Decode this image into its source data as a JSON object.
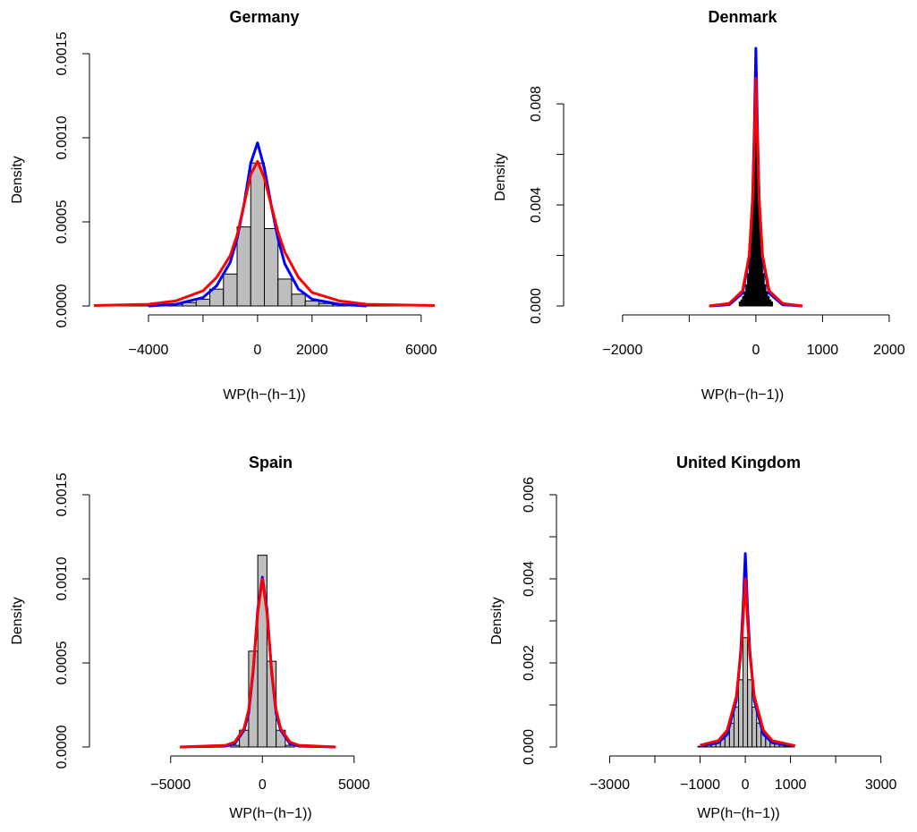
{
  "chart_data": [
    {
      "type": "histogram",
      "title": "Germany",
      "xlabel": "WP(h−(h−1))",
      "ylabel": "Density",
      "color": "#bebebe",
      "xlim": [
        -6000,
        6500
      ],
      "ylim": [
        0,
        0.0015
      ],
      "xticks": [
        {
          "value": -4000,
          "label": "−4000"
        },
        {
          "value": -2000,
          "label": null
        },
        0,
        2000,
        {
          "value": 4000,
          "label": null
        },
        6000
      ],
      "yticks": [
        {
          "value": 0,
          "label": "0.0000"
        },
        {
          "value": 0.0005,
          "label": "0.0005"
        },
        {
          "value": 0.001,
          "label": "0.0010"
        },
        {
          "value": 0.0015,
          "label": "0.0015"
        }
      ],
      "bins": [
        -5750,
        -5250,
        -4750,
        -4250,
        -3750,
        -3250,
        -2750,
        -2250,
        -1750,
        -1250,
        -750,
        -250,
        250,
        750,
        1250,
        1750,
        2250,
        2750,
        3250,
        3750,
        4250,
        4750,
        5250,
        5750,
        6250
      ],
      "values": [
        1e-06,
        1e-06,
        2e-06,
        3e-06,
        6e-06,
        1e-05,
        2e-05,
        4e-05,
        0.0001,
        0.00019,
        0.00047,
        0.00085,
        0.00046,
        0.00016,
        7e-05,
        3e-05,
        1.5e-05,
        8e-06,
        4e-06,
        3e-06,
        2e-06,
        1e-06,
        1e-06,
        1e-06
      ],
      "series": [
        {
          "color": "#0000ff",
          "x": [
            -4000,
            -3000,
            -2000,
            -1500,
            -1000,
            -750,
            -500,
            -250,
            0,
            250,
            500,
            750,
            1000,
            1500,
            2000,
            3000,
            4000
          ],
          "values": [
            0,
            1e-05,
            5e-05,
            0.00012,
            0.00026,
            0.0004,
            0.0006,
            0.00085,
            0.00097,
            0.00082,
            0.0006,
            0.0004,
            0.00025,
            0.0001,
            4e-05,
            1e-05,
            0
          ]
        },
        {
          "color": "#ff0000",
          "x": [
            -6000,
            -4000,
            -3000,
            -2000,
            -1500,
            -1000,
            -750,
            -500,
            -250,
            0,
            250,
            500,
            750,
            1000,
            1500,
            2000,
            3000,
            4000,
            6500
          ],
          "values": [
            3e-06,
            1e-05,
            3e-05,
            9e-05,
            0.00017,
            0.0003,
            0.00042,
            0.0006,
            0.00078,
            0.00086,
            0.00076,
            0.0006,
            0.00044,
            0.00032,
            0.00017,
            8e-05,
            3e-05,
            1e-05,
            3e-06
          ]
        }
      ]
    },
    {
      "type": "histogram",
      "title": "Denmark",
      "xlabel": "WP(h−(h−1))",
      "ylabel": "Density",
      "color": "#000000",
      "xlim": [
        -2750,
        2350
      ],
      "ylim": [
        0,
        0.0102
      ],
      "xticks": [
        {
          "value": -2000,
          "label": "−2000"
        },
        {
          "value": -1000,
          "label": null
        },
        0,
        1000,
        2000
      ],
      "yticks": [
        {
          "value": 0,
          "label": "0.000"
        },
        {
          "value": 0.002,
          "label": null
        },
        {
          "value": 0.004,
          "label": "0.004"
        },
        {
          "value": 0.006,
          "label": null
        },
        {
          "value": 0.008,
          "label": "0.008"
        }
      ],
      "bins": [
        -250,
        -225,
        -200,
        -175,
        -150,
        -125,
        -100,
        -75,
        -50,
        -25,
        0,
        25,
        50,
        75,
        100,
        125,
        150,
        175,
        200,
        225,
        250
      ],
      "values": [
        0.00016,
        0.00024,
        0.00037,
        0.00056,
        0.00084,
        0.00128,
        0.00194,
        0.00294,
        0.00446,
        0.00677,
        0.00677,
        0.00446,
        0.00294,
        0.00194,
        0.00128,
        0.00084,
        0.00056,
        0.00037,
        0.00024,
        0.00016
      ],
      "series": [
        {
          "color": "#0000ff",
          "x": [
            -700,
            -400,
            -200,
            -100,
            -50,
            -25,
            0,
            25,
            50,
            100,
            200,
            400,
            700
          ],
          "values": [
            0,
            5e-05,
            0.0005,
            0.0019,
            0.0042,
            0.0068,
            0.0102,
            0.0068,
            0.0042,
            0.0019,
            0.0005,
            5e-05,
            0
          ]
        },
        {
          "color": "#ff0000",
          "x": [
            -700,
            -400,
            -200,
            -100,
            -50,
            -25,
            0,
            25,
            50,
            100,
            200,
            400,
            700
          ],
          "values": [
            0,
            0.0001,
            0.0006,
            0.002,
            0.0042,
            0.0063,
            0.009,
            0.0063,
            0.0042,
            0.002,
            0.0006,
            0.0001,
            0
          ]
        }
      ]
    },
    {
      "type": "histogram",
      "title": "Spain",
      "xlabel": "WP(h−(h−1))",
      "ylabel": "Density",
      "color": "#bebebe",
      "xlim": [
        -8500,
        9400
      ],
      "ylim": [
        0,
        0.0015
      ],
      "xticks": [
        {
          "value": -5000,
          "label": "−5000"
        },
        0,
        5000
      ],
      "yticks": [
        {
          "value": 0,
          "label": "0.0000"
        },
        {
          "value": 0.0005,
          "label": "0.0005"
        },
        {
          "value": 0.001,
          "label": "0.0010"
        },
        {
          "value": 0.0015,
          "label": "0.0015"
        }
      ],
      "bins": [
        -1750,
        -1250,
        -750,
        -250,
        250,
        750,
        1250,
        1750
      ],
      "values": [
        1e-05,
        0.0001,
        0.00057,
        0.00114,
        0.00051,
        0.0001,
        1e-05
      ],
      "series": [
        {
          "color": "#0000ff",
          "x": [
            -4500,
            -2000,
            -1500,
            -1000,
            -750,
            -500,
            -250,
            0,
            250,
            500,
            750,
            1000,
            1500,
            2000,
            4000
          ],
          "values": [
            0,
            5e-06,
            2e-05,
            0.0001,
            0.0002,
            0.00045,
            0.00082,
            0.00101,
            0.00082,
            0.00045,
            0.0002,
            0.0001,
            2e-05,
            5e-06,
            0
          ]
        },
        {
          "color": "#ff0000",
          "x": [
            -4500,
            -2000,
            -1500,
            -1000,
            -750,
            -500,
            -250,
            0,
            250,
            500,
            750,
            1000,
            1500,
            2000,
            4000
          ],
          "values": [
            0,
            1e-05,
            3e-05,
            0.00011,
            0.00022,
            0.00046,
            0.0008,
            0.001,
            0.0008,
            0.00046,
            0.00022,
            0.00011,
            3e-05,
            1e-05,
            0
          ]
        }
      ]
    },
    {
      "type": "histogram",
      "title": "United Kingdom",
      "xlabel": "WP(h−(h−1))",
      "ylabel": "Density",
      "color": "#bebebe",
      "xlim": [
        -4000,
        3700
      ],
      "ylim": [
        0,
        0.006
      ],
      "xticks": [
        {
          "value": -3000,
          "label": "−3000"
        },
        {
          "value": -2000,
          "label": null
        },
        {
          "value": -1000,
          "label": "−1000"
        },
        0,
        1000,
        {
          "value": 2000,
          "label": null
        },
        3000
      ],
      "yticks": [
        {
          "value": 0,
          "label": "0.000"
        },
        {
          "value": 0.001,
          "label": null
        },
        {
          "value": 0.002,
          "label": "0.002"
        },
        {
          "value": 0.003,
          "label": null
        },
        {
          "value": 0.004,
          "label": "0.004"
        },
        {
          "value": 0.005,
          "label": null
        },
        {
          "value": 0.006,
          "label": "0.006"
        }
      ],
      "bins": [
        -1050,
        -950,
        -850,
        -750,
        -650,
        -550,
        -450,
        -350,
        -250,
        -150,
        -50,
        50,
        150,
        250,
        350,
        450,
        550,
        650,
        750,
        850,
        950,
        1050
      ],
      "values": [
        1.5e-05,
        2.5e-05,
        4e-05,
        7e-05,
        0.00012,
        0.0002,
        0.00034,
        0.00057,
        0.00095,
        0.0016,
        0.0026,
        0.0016,
        0.00095,
        0.00057,
        0.00034,
        0.0002,
        0.00012,
        7e-05,
        4e-05,
        2.5e-05,
        1.5e-05
      ],
      "series": [
        {
          "color": "#0000ff",
          "x": [
            -1000,
            -600,
            -400,
            -200,
            -100,
            -50,
            0,
            50,
            100,
            200,
            400,
            600,
            1100
          ],
          "values": [
            2e-05,
            0.0001,
            0.0003,
            0.0011,
            0.0023,
            0.0033,
            0.0046,
            0.0033,
            0.0023,
            0.0011,
            0.0003,
            0.0001,
            2e-05
          ]
        },
        {
          "color": "#ff0000",
          "x": [
            -1000,
            -600,
            -400,
            -200,
            -100,
            -50,
            0,
            50,
            100,
            200,
            400,
            600,
            1100
          ],
          "values": [
            4e-05,
            0.00015,
            0.0004,
            0.0012,
            0.0022,
            0.003,
            0.004,
            0.003,
            0.0022,
            0.0012,
            0.0004,
            0.00015,
            3e-05
          ]
        }
      ]
    }
  ]
}
